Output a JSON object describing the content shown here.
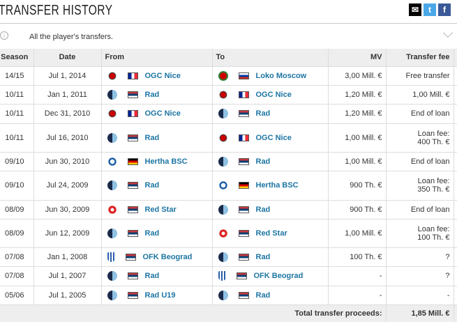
{
  "header": {
    "title": "TRANSFER HISTORY",
    "share": [
      {
        "icon": "mail-icon",
        "color": "#000000"
      },
      {
        "icon": "twitter-icon",
        "color": "#4aa8e8"
      },
      {
        "icon": "facebook-icon",
        "color": "#3b5998"
      }
    ]
  },
  "info": {
    "text": "All the player's transfers."
  },
  "table": {
    "columns": [
      "Season",
      "Date",
      "From",
      "To",
      "MV",
      "Transfer fee"
    ],
    "rows": [
      {
        "season": "14/15",
        "date": "Jul 1, 2014",
        "from": "OGC Nice",
        "from_flag": "france",
        "to": "Loko Moscow",
        "to_flag": "russia",
        "mv": "3,00 Mill. €",
        "fee1": "Free transfer",
        "fee2": ""
      },
      {
        "season": "10/11",
        "date": "Jan 1, 2011",
        "from": "Rad",
        "from_flag": "serbia",
        "to": "OGC Nice",
        "to_flag": "france",
        "mv": "1,20 Mill. €",
        "fee1": "1,00 Mill. €",
        "fee2": ""
      },
      {
        "season": "10/11",
        "date": "Dec 31, 2010",
        "from": "OGC Nice",
        "from_flag": "france",
        "to": "Rad",
        "to_flag": "serbia",
        "mv": "1,20 Mill. €",
        "fee1": "End of loan",
        "fee2": ""
      },
      {
        "season": "10/11",
        "date": "Jul 16, 2010",
        "from": "Rad",
        "from_flag": "serbia",
        "to": "OGC Nice",
        "to_flag": "france",
        "mv": "1,00 Mill. €",
        "fee1": "Loan fee:",
        "fee2": "400 Th. €"
      },
      {
        "season": "09/10",
        "date": "Jun 30, 2010",
        "from": "Hertha BSC",
        "from_flag": "germany",
        "to": "Rad",
        "to_flag": "serbia",
        "mv": "1,00 Mill. €",
        "fee1": "End of loan",
        "fee2": ""
      },
      {
        "season": "09/10",
        "date": "Jul 24, 2009",
        "from": "Rad",
        "from_flag": "serbia",
        "to": "Hertha BSC",
        "to_flag": "germany",
        "mv": "900 Th. €",
        "fee1": "Loan fee:",
        "fee2": "350 Th. €"
      },
      {
        "season": "08/09",
        "date": "Jun 30, 2009",
        "from": "Red Star",
        "from_flag": "serbia",
        "to": "Rad",
        "to_flag": "serbia",
        "mv": "900 Th. €",
        "fee1": "End of loan",
        "fee2": ""
      },
      {
        "season": "08/09",
        "date": "Jun 12, 2009",
        "from": "Rad",
        "from_flag": "serbia",
        "to": "Red Star",
        "to_flag": "serbia",
        "mv": "1,00 Mill. €",
        "fee1": "Loan fee:",
        "fee2": "100 Th. €"
      },
      {
        "season": "07/08",
        "date": "Jan 1, 2008",
        "from": "OFK Beograd",
        "from_flag": "serbia",
        "to": "Rad",
        "to_flag": "serbia",
        "mv": "100 Th. €",
        "fee1": "?",
        "fee2": ""
      },
      {
        "season": "07/08",
        "date": "Jul 1, 2007",
        "from": "Rad",
        "from_flag": "serbia",
        "to": "OFK Beograd",
        "to_flag": "serbia",
        "mv": "-",
        "fee1": "?",
        "fee2": ""
      },
      {
        "season": "05/06",
        "date": "Jul 1, 2005",
        "from": "Rad U19",
        "from_flag": "serbia",
        "to": "Rad",
        "to_flag": "serbia",
        "mv": "-",
        "fee1": "-",
        "fee2": ""
      }
    ],
    "footer": {
      "label": "Total transfer proceeds:",
      "total": "1,85 Mill. €"
    }
  }
}
